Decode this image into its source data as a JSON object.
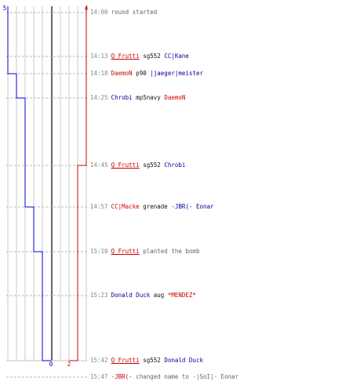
{
  "colors": {
    "blue_team": "#0000cc",
    "red_team": "#cc0000",
    "grid": "#c8c8c8",
    "center": "#666666",
    "dash": "#bbbbbb",
    "time": "#888888"
  },
  "graph": {
    "start_blue": "5",
    "start_red": "4",
    "end_blue": "0",
    "end_red": "2",
    "blue_remaining": [
      5,
      5,
      4,
      3,
      3,
      2,
      1,
      1,
      1,
      0,
      0
    ],
    "red_remaining": [
      4,
      4,
      4,
      4,
      3,
      3,
      3,
      3,
      3,
      2,
      2
    ]
  },
  "events": [
    {
      "time": "14:00",
      "parts": [
        {
          "text": "round started",
          "style": "grey"
        }
      ]
    },
    {
      "time": "14:13",
      "parts": [
        {
          "text": "Q_Frutti",
          "style": "red ul"
        },
        {
          "text": " sg552 ",
          "style": "black"
        },
        {
          "text": "CC|Kane",
          "style": "blue"
        }
      ]
    },
    {
      "time": "14:18",
      "parts": [
        {
          "text": "DaemoN",
          "style": "red"
        },
        {
          "text": " p90 ",
          "style": "black"
        },
        {
          "text": "|jaeger|meister",
          "style": "blue"
        }
      ]
    },
    {
      "time": "14:25",
      "parts": [
        {
          "text": "Chrobi",
          "style": "blue"
        },
        {
          "text": " mp5navy ",
          "style": "black"
        },
        {
          "text": "DaemoN",
          "style": "red"
        }
      ]
    },
    {
      "time": "14:45",
      "parts": [
        {
          "text": "Q_Frutti",
          "style": "red ul"
        },
        {
          "text": " sg552 ",
          "style": "black"
        },
        {
          "text": "Chrobi",
          "style": "blue"
        }
      ]
    },
    {
      "time": "14:57",
      "parts": [
        {
          "text": "CC|Macke",
          "style": "red"
        },
        {
          "text": " grenade ",
          "style": "black"
        },
        {
          "text": "-JBR(- Eonar",
          "style": "blue"
        }
      ]
    },
    {
      "time": "15:10",
      "parts": [
        {
          "text": "Q_Frutti",
          "style": "red ul"
        },
        {
          "text": " planted the bomb",
          "style": "grey"
        }
      ]
    },
    {
      "time": "15:23",
      "parts": [
        {
          "text": "Donald Duck",
          "style": "blue"
        },
        {
          "text": " aug ",
          "style": "black"
        },
        {
          "text": "*MENDEZ*",
          "style": "red"
        }
      ]
    },
    {
      "time": "15:42",
      "parts": [
        {
          "text": "Q_Frutti",
          "style": "red ul"
        },
        {
          "text": " sg552 ",
          "style": "black"
        },
        {
          "text": "Donald Duck",
          "style": "blue"
        }
      ]
    },
    {
      "time": "15:47",
      "parts": [
        {
          "text": "-JBR(-",
          "style": "red"
        },
        {
          "text": " changed name to -|SoI|- Eonar",
          "style": "grey"
        }
      ]
    }
  ]
}
